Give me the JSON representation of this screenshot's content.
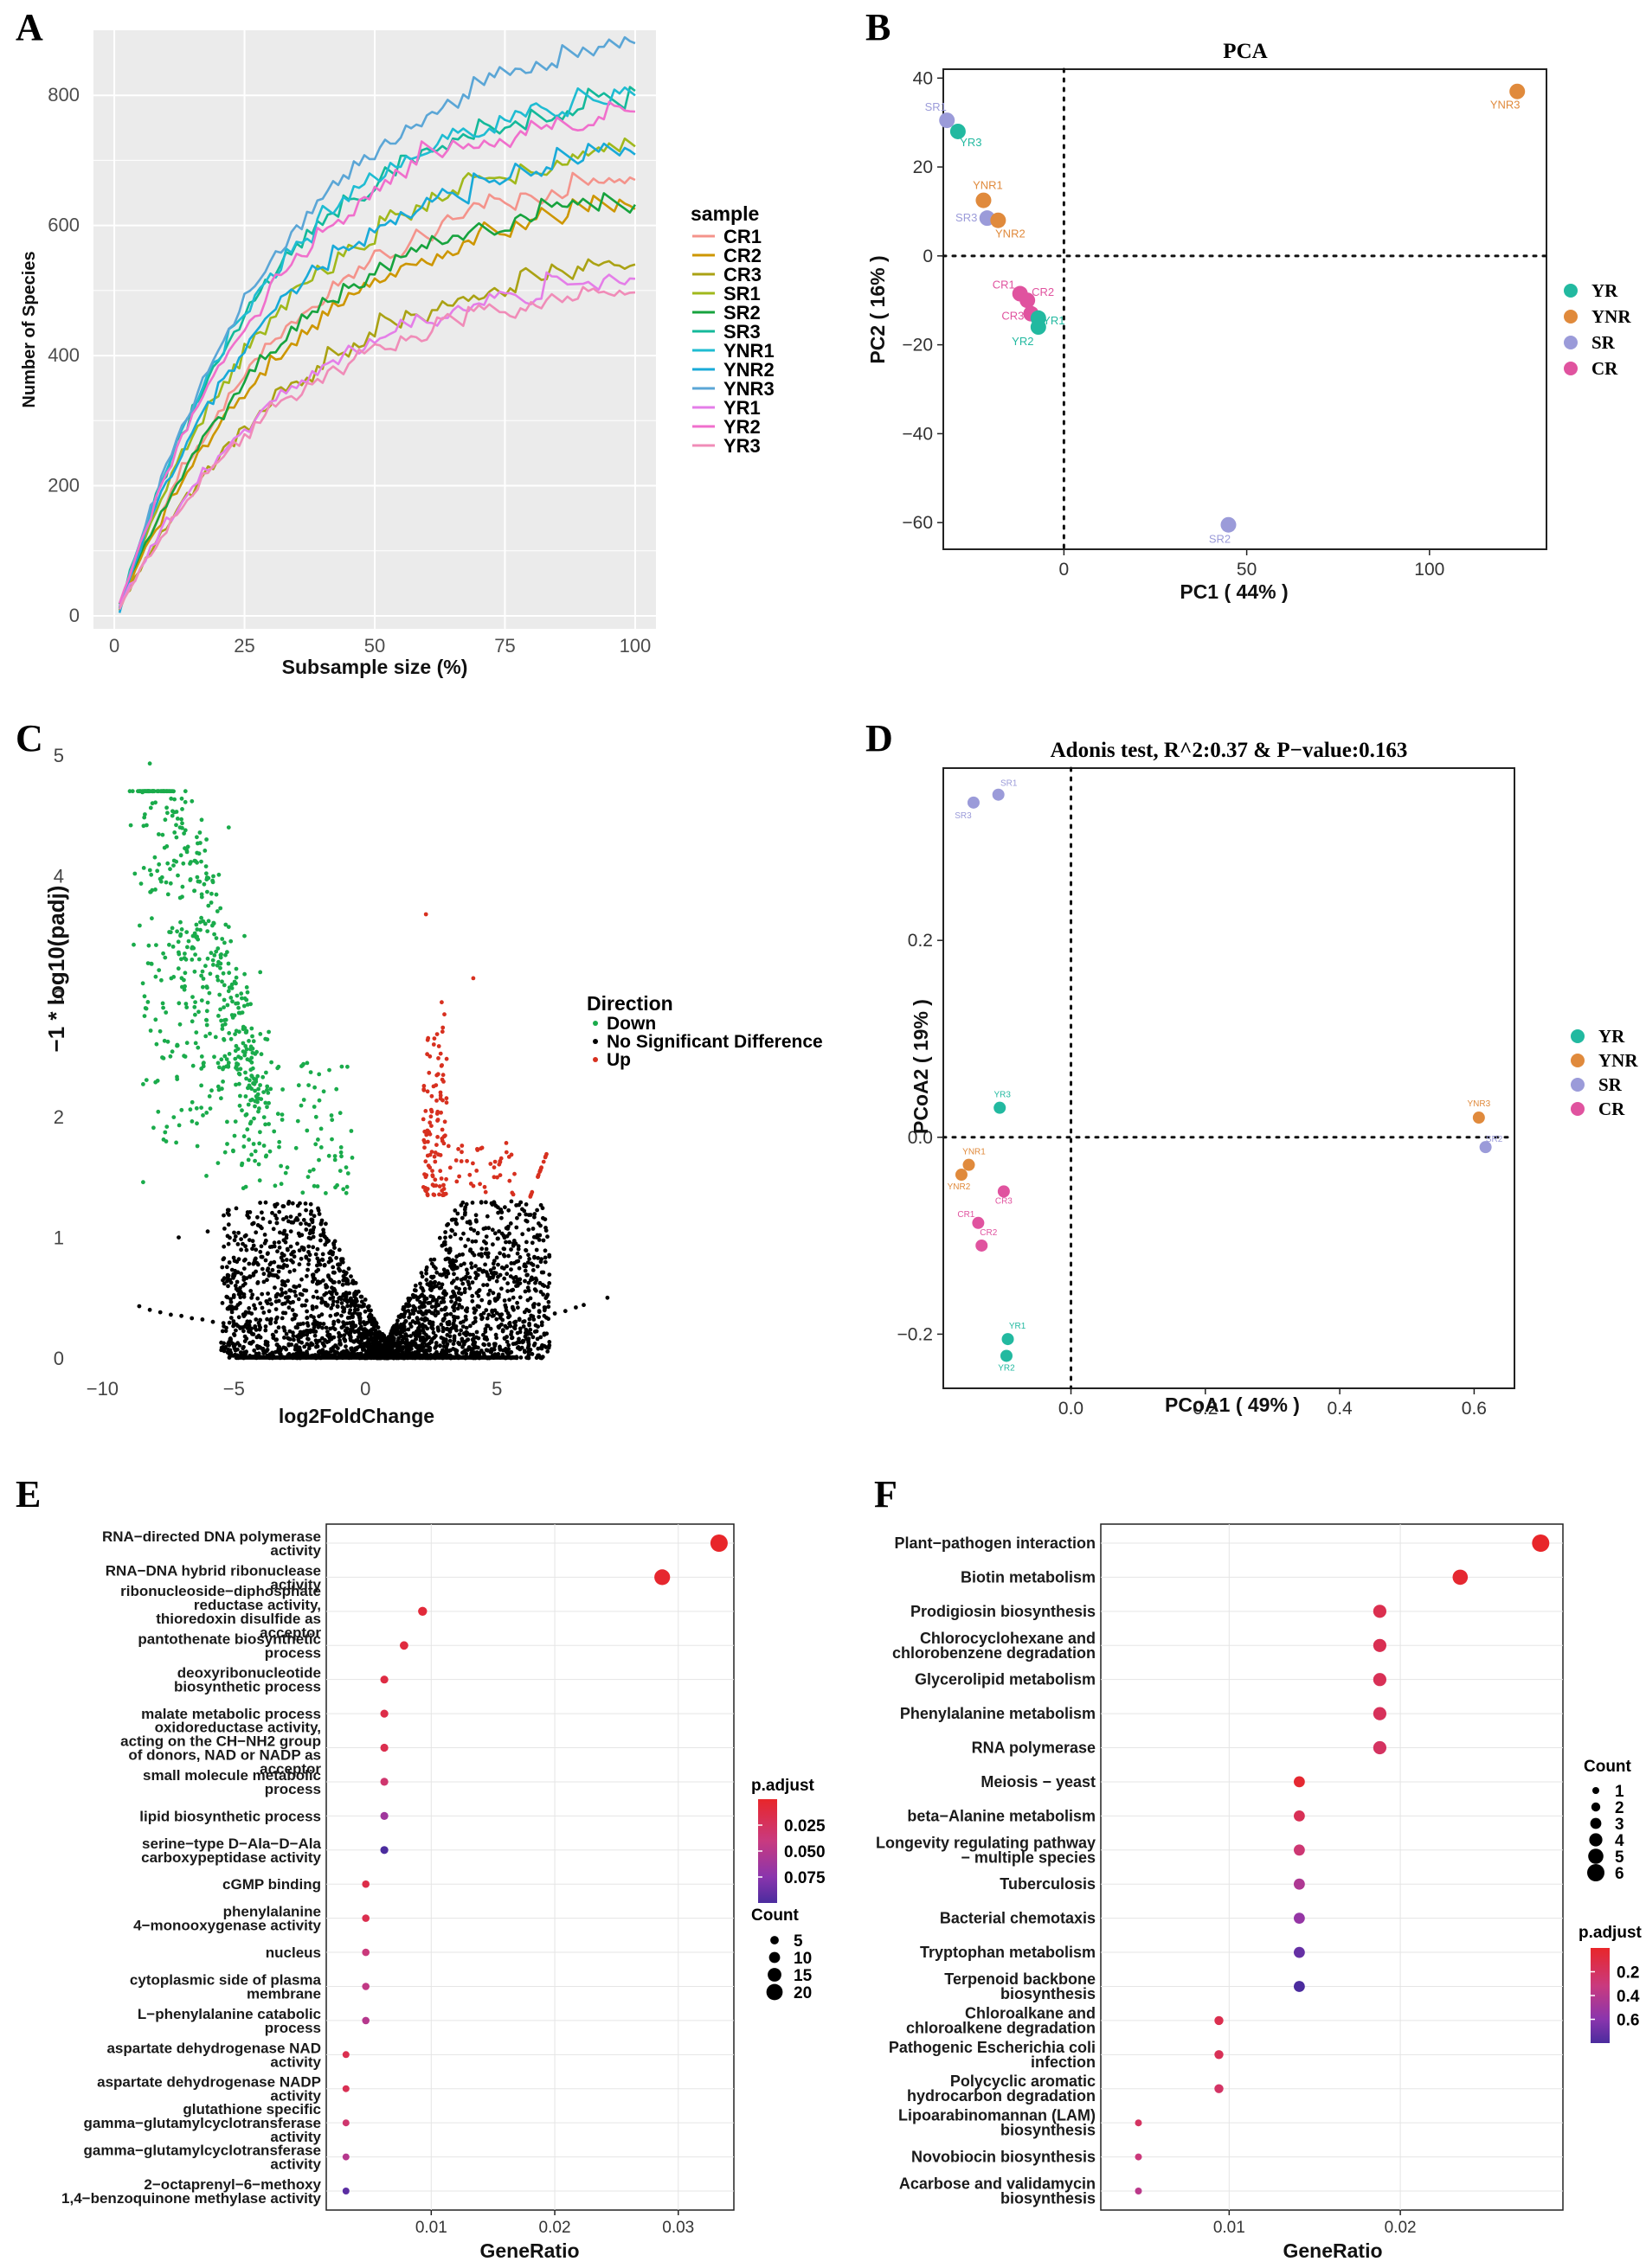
{
  "figure": {
    "panel_letters": [
      "A",
      "B",
      "C",
      "D",
      "E",
      "F"
    ]
  },
  "chart_data": [
    {
      "id": "A",
      "type": "line",
      "title": "",
      "xlabel": "Subsample size (%)",
      "ylabel": "Number of Species",
      "xlim": [
        -4,
        104
      ],
      "ylim": [
        -20,
        900
      ],
      "xticks": [
        0,
        25,
        50,
        75,
        100
      ],
      "yticks": [
        0,
        200,
        400,
        600,
        800
      ],
      "legend_title": "sample",
      "series": [
        {
          "name": "CR1",
          "color": "#f4938b",
          "final": 670,
          "k": 0.03
        },
        {
          "name": "CR2",
          "color": "#cd9600",
          "final": 625,
          "k": 0.03
        },
        {
          "name": "CR3",
          "color": "#aaa214",
          "final": 540,
          "k": 0.028
        },
        {
          "name": "SR1",
          "color": "#a0b81c",
          "final": 715,
          "k": 0.032
        },
        {
          "name": "SR2",
          "color": "#17a33e",
          "final": 632,
          "k": 0.032
        },
        {
          "name": "SR3",
          "color": "#14b99a",
          "final": 788,
          "k": 0.034
        },
        {
          "name": "YNR1",
          "color": "#1fbcd2",
          "final": 795,
          "k": 0.034
        },
        {
          "name": "YNR2",
          "color": "#19aad8",
          "final": 705,
          "k": 0.034
        },
        {
          "name": "YNR3",
          "color": "#5ba6d6",
          "final": 880,
          "k": 0.03
        },
        {
          "name": "YR1",
          "color": "#e47ee8",
          "final": 518,
          "k": 0.03
        },
        {
          "name": "YR2",
          "color": "#f06fcc",
          "final": 775,
          "k": 0.033
        },
        {
          "name": "YR3",
          "color": "#f08cb8",
          "final": 497,
          "k": 0.03
        }
      ]
    },
    {
      "id": "B",
      "type": "scatter",
      "title": "PCA",
      "xlabel": "PC1 ( 44% )",
      "ylabel": "PC2 ( 16% )",
      "xlim": [
        -33,
        132
      ],
      "ylim": [
        -66,
        42
      ],
      "xticks": [
        0,
        50,
        100
      ],
      "yticks": [
        -60,
        -40,
        -20,
        0,
        20,
        40
      ],
      "reference_lines": {
        "x": 0,
        "y": 0
      },
      "groups": [
        {
          "name": "YR",
          "color": "#22b9a0"
        },
        {
          "name": "YNR",
          "color": "#e08a3c"
        },
        {
          "name": "SR",
          "color": "#9b9bd9"
        },
        {
          "name": "CR",
          "color": "#e0539f"
        }
      ],
      "points": [
        {
          "label": "SR1",
          "group": "SR",
          "x": -32,
          "y": 30.5
        },
        {
          "label": "YR3",
          "group": "YR",
          "x": -29,
          "y": 28
        },
        {
          "label": "YNR1",
          "group": "YNR",
          "x": -22,
          "y": 12.5
        },
        {
          "label": "SR3",
          "group": "SR",
          "x": -21,
          "y": 8.5
        },
        {
          "label": "YNR2",
          "group": "YNR",
          "x": -18,
          "y": 8
        },
        {
          "label": "CR1",
          "group": "CR",
          "x": -12,
          "y": -8.5
        },
        {
          "label": "CR2",
          "group": "CR",
          "x": -10,
          "y": -10
        },
        {
          "label": "CR3",
          "group": "CR",
          "x": -9,
          "y": -13
        },
        {
          "label": "YR1",
          "group": "YR",
          "x": -7,
          "y": -14
        },
        {
          "label": "YR2",
          "group": "YR",
          "x": -7,
          "y": -16
        },
        {
          "label": "YNR3",
          "group": "YNR",
          "x": 124,
          "y": 37
        },
        {
          "label": "SR2",
          "group": "SR",
          "x": 45,
          "y": -60.5
        }
      ]
    },
    {
      "id": "C",
      "type": "scatter",
      "title": "",
      "xlabel": "log2FoldChange",
      "ylabel": "−1 * log10(padj)",
      "xlim": [
        -11,
        9.5
      ],
      "ylim": [
        -0.1,
        5.15
      ],
      "xticks": [
        -10,
        -5,
        0,
        5
      ],
      "yticks": [
        0,
        1,
        2,
        3,
        4,
        5
      ],
      "legend_title": "Direction",
      "categories": [
        {
          "name": "Down",
          "color": "#1aab4b"
        },
        {
          "name": "No Significant Difference",
          "color": "#000000"
        },
        {
          "name": "Up",
          "color": "#d7301f"
        }
      ],
      "significance_threshold": 1.3
    },
    {
      "id": "D",
      "type": "scatter",
      "title": "Adonis test, R^2:0.37 & P−value:0.163",
      "xlabel": "PCoA1 ( 49% )",
      "ylabel": "PCoA2 ( 19% )",
      "xlim": [
        -0.19,
        0.66
      ],
      "ylim": [
        -0.255,
        0.375
      ],
      "xticks": [
        0.0,
        0.2,
        0.4,
        0.6
      ],
      "yticks": [
        -0.2,
        0.0,
        0.2
      ],
      "reference_lines": {
        "x": 0,
        "y": 0
      },
      "groups": [
        {
          "name": "YR",
          "color": "#22b9a0"
        },
        {
          "name": "YNR",
          "color": "#e08a3c"
        },
        {
          "name": "SR",
          "color": "#9b9bd9"
        },
        {
          "name": "CR",
          "color": "#e0539f"
        }
      ],
      "points": [
        {
          "label": "SR1",
          "group": "SR",
          "x": -0.108,
          "y": 0.348
        },
        {
          "label": "SR3",
          "group": "SR",
          "x": -0.145,
          "y": 0.34
        },
        {
          "label": "YR3",
          "group": "YR",
          "x": -0.106,
          "y": 0.03
        },
        {
          "label": "YNR1",
          "group": "YNR",
          "x": -0.152,
          "y": -0.028
        },
        {
          "label": "YNR2",
          "group": "YNR",
          "x": -0.163,
          "y": -0.038
        },
        {
          "label": "CR3",
          "group": "CR",
          "x": -0.1,
          "y": -0.055
        },
        {
          "label": "CR1",
          "group": "CR",
          "x": -0.138,
          "y": -0.087
        },
        {
          "label": "CR2",
          "group": "CR",
          "x": -0.133,
          "y": -0.11
        },
        {
          "label": "YR1",
          "group": "YR",
          "x": -0.094,
          "y": -0.205
        },
        {
          "label": "YR2",
          "group": "YR",
          "x": -0.096,
          "y": -0.222
        },
        {
          "label": "YNR3",
          "group": "YNR",
          "x": 0.607,
          "y": 0.02
        },
        {
          "label": "SR2",
          "group": "SR",
          "x": 0.617,
          "y": -0.01
        }
      ]
    },
    {
      "id": "E",
      "type": "scatter",
      "title": "",
      "xlabel": "GeneRatio",
      "ylabel": "",
      "xlim": [
        0.0015,
        0.0345
      ],
      "xticks": [
        0.01,
        0.02,
        0.03
      ],
      "xtick_labels": [
        "0.01",
        "0.02",
        "0.03"
      ],
      "size_legend": {
        "title": "Count",
        "values": [
          5,
          10,
          15,
          20
        ]
      },
      "color_legend": {
        "title": "p.adjust",
        "ticks": [
          "0.025",
          "0.050",
          "0.075"
        ],
        "colors": [
          "#e8262a",
          "#c43a8a",
          "#6c33b4",
          "#4b2c9e"
        ]
      },
      "terms": [
        {
          "lines": [
            "RNA−directed DNA polymerase",
            "activity"
          ],
          "gene_ratio": 0.0333,
          "count": 22,
          "p_adjust": 0.004
        },
        {
          "lines": [
            "RNA−DNA hybrid ribonuclease",
            "activity"
          ],
          "gene_ratio": 0.0287,
          "count": 19,
          "p_adjust": 0.006
        },
        {
          "lines": [
            "ribonucleoside−diphosphate",
            "reductase activity,",
            "thioredoxin disulfide as",
            "acceptor"
          ],
          "gene_ratio": 0.0093,
          "count": 6,
          "p_adjust": 0.01
        },
        {
          "lines": [
            "pantothenate biosynthetic",
            "process"
          ],
          "gene_ratio": 0.0078,
          "count": 5,
          "p_adjust": 0.012
        },
        {
          "lines": [
            "deoxyribonucleotide",
            "biosynthetic process"
          ],
          "gene_ratio": 0.0062,
          "count": 4,
          "p_adjust": 0.014
        },
        {
          "lines": [
            "malate metabolic process"
          ],
          "gene_ratio": 0.0062,
          "count": 4,
          "p_adjust": 0.016
        },
        {
          "lines": [
            "oxidoreductase activity,",
            "acting on the CH−NH2 group",
            "of donors, NAD or NADP as",
            "acceptor"
          ],
          "gene_ratio": 0.0062,
          "count": 4,
          "p_adjust": 0.018
        },
        {
          "lines": [
            "small molecule metabolic",
            "process"
          ],
          "gene_ratio": 0.0062,
          "count": 4,
          "p_adjust": 0.03
        },
        {
          "lines": [
            "lipid biosynthetic process"
          ],
          "gene_ratio": 0.0062,
          "count": 4,
          "p_adjust": 0.055
        },
        {
          "lines": [
            "serine−type D−Ala−D−Ala",
            "carboxypeptidase activity"
          ],
          "gene_ratio": 0.0062,
          "count": 4,
          "p_adjust": 0.085
        },
        {
          "lines": [
            "cGMP binding"
          ],
          "gene_ratio": 0.0047,
          "count": 3,
          "p_adjust": 0.016
        },
        {
          "lines": [
            "phenylalanine",
            "4−monooxygenase activity"
          ],
          "gene_ratio": 0.0047,
          "count": 3,
          "p_adjust": 0.018
        },
        {
          "lines": [
            "nucleus"
          ],
          "gene_ratio": 0.0047,
          "count": 3,
          "p_adjust": 0.035
        },
        {
          "lines": [
            "cytoplasmic side of plasma",
            "membrane"
          ],
          "gene_ratio": 0.0047,
          "count": 3,
          "p_adjust": 0.04
        },
        {
          "lines": [
            "L−phenylalanine catabolic",
            "process"
          ],
          "gene_ratio": 0.0047,
          "count": 3,
          "p_adjust": 0.045
        },
        {
          "lines": [
            "aspartate dehydrogenase NAD",
            "activity"
          ],
          "gene_ratio": 0.0031,
          "count": 2,
          "p_adjust": 0.018
        },
        {
          "lines": [
            "aspartate dehydrogenase NADP",
            "activity"
          ],
          "gene_ratio": 0.0031,
          "count": 2,
          "p_adjust": 0.02
        },
        {
          "lines": [
            "glutathione specific",
            "gamma−glutamylcyclotransferase",
            "activity"
          ],
          "gene_ratio": 0.0031,
          "count": 2,
          "p_adjust": 0.03
        },
        {
          "lines": [
            "gamma−glutamylcyclotransferase",
            "activity"
          ],
          "gene_ratio": 0.0031,
          "count": 2,
          "p_adjust": 0.045
        },
        {
          "lines": [
            "2−octaprenyl−6−methoxy",
            "1,4−benzoquinone methylase activity"
          ],
          "gene_ratio": 0.0031,
          "count": 2,
          "p_adjust": 0.08
        }
      ]
    },
    {
      "id": "F",
      "type": "scatter",
      "title": "",
      "xlabel": "GeneRatio",
      "ylabel": "",
      "xlim": [
        0.0025,
        0.0295
      ],
      "xticks": [
        0.01,
        0.02
      ],
      "xtick_labels": [
        "0.01",
        "0.02"
      ],
      "size_legend": {
        "title": "Count",
        "values": [
          1,
          2,
          3,
          4,
          5,
          6
        ]
      },
      "color_legend": {
        "title": "p.adjust",
        "ticks": [
          "0.2",
          "0.4",
          "0.6"
        ],
        "colors": [
          "#e8262a",
          "#c43a8a",
          "#6c33b4",
          "#4b2c9e"
        ]
      },
      "terms": [
        {
          "lines": [
            "Plant−pathogen interaction"
          ],
          "gene_ratio": 0.0282,
          "count": 6,
          "p_adjust": 0.1
        },
        {
          "lines": [
            "Biotin metabolism"
          ],
          "gene_ratio": 0.0235,
          "count": 5,
          "p_adjust": 0.12
        },
        {
          "lines": [
            "Prodigiosin biosynthesis"
          ],
          "gene_ratio": 0.0188,
          "count": 4,
          "p_adjust": 0.2
        },
        {
          "lines": [
            "Chlorocyclohexane and",
            "chlorobenzene degradation"
          ],
          "gene_ratio": 0.0188,
          "count": 4,
          "p_adjust": 0.21
        },
        {
          "lines": [
            "Glycerolipid metabolism"
          ],
          "gene_ratio": 0.0188,
          "count": 4,
          "p_adjust": 0.22
        },
        {
          "lines": [
            "Phenylalanine metabolism"
          ],
          "gene_ratio": 0.0188,
          "count": 4,
          "p_adjust": 0.23
        },
        {
          "lines": [
            "RNA polymerase"
          ],
          "gene_ratio": 0.0188,
          "count": 4,
          "p_adjust": 0.25
        },
        {
          "lines": [
            "Meiosis − yeast"
          ],
          "gene_ratio": 0.0141,
          "count": 3,
          "p_adjust": 0.12
        },
        {
          "lines": [
            "beta−Alanine metabolism"
          ],
          "gene_ratio": 0.0141,
          "count": 3,
          "p_adjust": 0.22
        },
        {
          "lines": [
            "Longevity regulating pathway",
            "− multiple species"
          ],
          "gene_ratio": 0.0141,
          "count": 3,
          "p_adjust": 0.3
        },
        {
          "lines": [
            "Tuberculosis"
          ],
          "gene_ratio": 0.0141,
          "count": 3,
          "p_adjust": 0.42
        },
        {
          "lines": [
            "Bacterial chemotaxis"
          ],
          "gene_ratio": 0.0141,
          "count": 3,
          "p_adjust": 0.5
        },
        {
          "lines": [
            "Tryptophan metabolism"
          ],
          "gene_ratio": 0.0141,
          "count": 3,
          "p_adjust": 0.62
        },
        {
          "lines": [
            "Terpenoid backbone",
            "biosynthesis"
          ],
          "gene_ratio": 0.0141,
          "count": 3,
          "p_adjust": 0.68
        },
        {
          "lines": [
            "Chloroalkane and",
            "chloroalkene degradation"
          ],
          "gene_ratio": 0.0094,
          "count": 2,
          "p_adjust": 0.2
        },
        {
          "lines": [
            "Pathogenic Escherichia coli",
            "infection"
          ],
          "gene_ratio": 0.0094,
          "count": 2,
          "p_adjust": 0.22
        },
        {
          "lines": [
            "Polycyclic aromatic",
            "hydrocarbon degradation"
          ],
          "gene_ratio": 0.0094,
          "count": 2,
          "p_adjust": 0.26
        },
        {
          "lines": [
            "Lipoarabinomannan (LAM)",
            "biosynthesis"
          ],
          "gene_ratio": 0.0047,
          "count": 1,
          "p_adjust": 0.25
        },
        {
          "lines": [
            "Novobiocin biosynthesis"
          ],
          "gene_ratio": 0.0047,
          "count": 1,
          "p_adjust": 0.32
        },
        {
          "lines": [
            "Acarbose and validamycin",
            "biosynthesis"
          ],
          "gene_ratio": 0.0047,
          "count": 1,
          "p_adjust": 0.38
        }
      ]
    }
  ]
}
